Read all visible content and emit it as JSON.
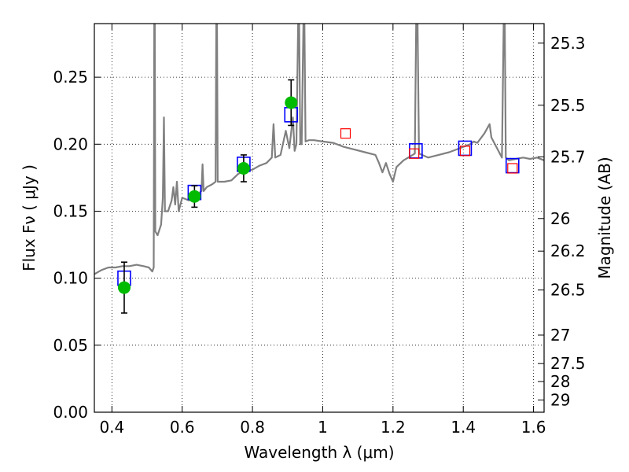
{
  "chart_data": {
    "type": "line",
    "xlabel": "Wavelength  λ (μm)",
    "ylabel": "Flux  Fν  ( μJy )",
    "y2label": "Magnitude (AB)",
    "xlim": [
      0.35,
      1.63
    ],
    "ylim": [
      0.0,
      0.29
    ],
    "grid": true,
    "x_ticks": [
      0.4,
      0.6,
      0.8,
      1.0,
      1.2,
      1.4,
      1.6
    ],
    "x_tick_labels": [
      "0.4",
      "0.6",
      "0.8",
      "1",
      "1.2",
      "1.4",
      "1.6"
    ],
    "y_ticks": [
      0.0,
      0.05,
      0.1,
      0.15,
      0.2,
      0.25
    ],
    "y_tick_labels": [
      "0.00",
      "0.05",
      "0.10",
      "0.15",
      "0.20",
      "0.25"
    ],
    "mag_ticks": [
      25.3,
      25.5,
      25.7,
      26,
      26.2,
      26.5,
      27,
      27.5,
      28,
      29
    ],
    "mag_tick_labels": [
      "25.3",
      "25.5",
      "25.7",
      "26",
      "26.2",
      "26.5",
      "27",
      "27.5",
      "28",
      "29"
    ],
    "colors": {
      "spectrum": "#808080",
      "model_box": "#0000ff",
      "nir_box": "#ff0000",
      "observed_point": "#00bb00",
      "errorbar": "#000000"
    },
    "series": [
      {
        "kind": "spectrum",
        "points": [
          [
            0.35,
            0.103
          ],
          [
            0.37,
            0.106
          ],
          [
            0.39,
            0.108
          ],
          [
            0.41,
            0.108
          ],
          [
            0.43,
            0.109
          ],
          [
            0.45,
            0.109
          ],
          [
            0.47,
            0.11
          ],
          [
            0.49,
            0.109
          ],
          [
            0.505,
            0.108
          ],
          [
            0.515,
            0.105
          ],
          [
            0.519,
            0.108
          ],
          [
            0.5205,
            0.29
          ],
          [
            0.522,
            0.29
          ],
          [
            0.5235,
            0.135
          ],
          [
            0.53,
            0.132
          ],
          [
            0.54,
            0.14
          ],
          [
            0.545,
            0.16
          ],
          [
            0.548,
            0.22
          ],
          [
            0.551,
            0.15
          ],
          [
            0.56,
            0.15
          ],
          [
            0.57,
            0.158
          ],
          [
            0.575,
            0.168
          ],
          [
            0.58,
            0.155
          ],
          [
            0.585,
            0.172
          ],
          [
            0.59,
            0.15
          ],
          [
            0.6,
            0.16
          ],
          [
            0.62,
            0.158
          ],
          [
            0.64,
            0.162
          ],
          [
            0.655,
            0.165
          ],
          [
            0.658,
            0.185
          ],
          [
            0.661,
            0.165
          ],
          [
            0.67,
            0.168
          ],
          [
            0.685,
            0.17
          ],
          [
            0.695,
            0.172
          ],
          [
            0.697,
            0.29
          ],
          [
            0.699,
            0.29
          ],
          [
            0.701,
            0.172
          ],
          [
            0.72,
            0.172
          ],
          [
            0.74,
            0.173
          ],
          [
            0.76,
            0.178
          ],
          [
            0.78,
            0.18
          ],
          [
            0.8,
            0.181
          ],
          [
            0.82,
            0.184
          ],
          [
            0.84,
            0.186
          ],
          [
            0.855,
            0.19
          ],
          [
            0.86,
            0.215
          ],
          [
            0.865,
            0.19
          ],
          [
            0.88,
            0.192
          ],
          [
            0.895,
            0.21
          ],
          [
            0.905,
            0.197
          ],
          [
            0.915,
            0.22
          ],
          [
            0.92,
            0.195
          ],
          [
            0.925,
            0.2
          ],
          [
            0.93,
            0.29
          ],
          [
            0.933,
            0.29
          ],
          [
            0.936,
            0.2
          ],
          [
            0.94,
            0.2
          ],
          [
            0.945,
            0.29
          ],
          [
            0.948,
            0.29
          ],
          [
            0.951,
            0.202
          ],
          [
            0.96,
            0.203
          ],
          [
            0.975,
            0.203
          ],
          [
            1.0,
            0.202
          ],
          [
            1.03,
            0.201
          ],
          [
            1.06,
            0.198
          ],
          [
            1.09,
            0.196
          ],
          [
            1.12,
            0.194
          ],
          [
            1.15,
            0.192
          ],
          [
            1.16,
            0.186
          ],
          [
            1.17,
            0.179
          ],
          [
            1.18,
            0.186
          ],
          [
            1.19,
            0.178
          ],
          [
            1.2,
            0.172
          ],
          [
            1.21,
            0.183
          ],
          [
            1.23,
            0.188
          ],
          [
            1.25,
            0.191
          ],
          [
            1.262,
            0.193
          ],
          [
            1.266,
            0.29
          ],
          [
            1.27,
            0.29
          ],
          [
            1.274,
            0.193
          ],
          [
            1.3,
            0.19
          ],
          [
            1.33,
            0.192
          ],
          [
            1.36,
            0.194
          ],
          [
            1.38,
            0.196
          ],
          [
            1.4,
            0.198
          ],
          [
            1.42,
            0.2
          ],
          [
            1.43,
            0.202
          ],
          [
            1.44,
            0.201
          ],
          [
            1.46,
            0.208
          ],
          [
            1.475,
            0.215
          ],
          [
            1.48,
            0.205
          ],
          [
            1.5,
            0.195
          ],
          [
            1.51,
            0.19
          ],
          [
            1.515,
            0.29
          ],
          [
            1.518,
            0.29
          ],
          [
            1.521,
            0.19
          ],
          [
            1.53,
            0.188
          ],
          [
            1.55,
            0.189
          ],
          [
            1.57,
            0.19
          ],
          [
            1.59,
            0.189
          ],
          [
            1.61,
            0.19
          ],
          [
            1.63,
            0.188
          ]
        ]
      },
      {
        "kind": "model_box",
        "points": [
          [
            0.435,
            0.1
          ],
          [
            0.635,
            0.164
          ],
          [
            0.775,
            0.185
          ],
          [
            0.91,
            0.222
          ],
          [
            1.265,
            0.195
          ],
          [
            1.405,
            0.197
          ],
          [
            1.54,
            0.184
          ]
        ]
      },
      {
        "kind": "nir_box",
        "points": [
          [
            1.065,
            0.208
          ],
          [
            1.26,
            0.193
          ],
          [
            1.405,
            0.195
          ],
          [
            1.54,
            0.182
          ]
        ]
      },
      {
        "kind": "observed_point",
        "points": [
          {
            "x": 0.435,
            "y": 0.093,
            "err": 0.019
          },
          {
            "x": 0.635,
            "y": 0.161,
            "err": 0.008
          },
          {
            "x": 0.775,
            "y": 0.182,
            "err": 0.01
          },
          {
            "x": 0.91,
            "y": 0.231,
            "err": 0.017
          }
        ]
      }
    ]
  }
}
